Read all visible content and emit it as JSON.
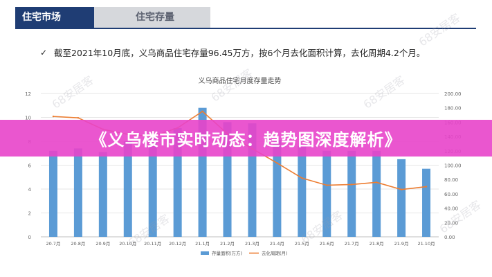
{
  "tabs": {
    "active": "住宅市场",
    "inactive": "住宅存量"
  },
  "bullet_text": "截至2021年10月底，义乌商品住宅存量96.45万方，按6个月去化面积计算，去化周期4.2个月。",
  "banner_text": "《义乌楼市实时动态：趋势图深度解析》",
  "watermark": "68安居客",
  "colors": {
    "bar": "#5b9bd5",
    "line": "#ed7d31",
    "tab_active": "#1f3d74",
    "banner": "#e844ca"
  },
  "chart_data": {
    "type": "bar",
    "title": "义乌商品住宅月度存量走势",
    "categories": [
      "20.7月",
      "20.8月",
      "20.9月",
      "20.10月",
      "20.11月",
      "20.12月",
      "21.1月",
      "21.2月",
      "21.3月",
      "21.4月",
      "21.5月",
      "21.6月",
      "21.7月",
      "21.8月",
      "21.9月",
      "21.10月"
    ],
    "left_axis": {
      "ylim": [
        0,
        12
      ],
      "ticks": [
        "0",
        "2",
        "4",
        "6",
        "8",
        "10",
        "12"
      ]
    },
    "right_axis": {
      "ylim": [
        0,
        200
      ],
      "ticks": [
        "0.00",
        "20.00",
        "40.00",
        "60.00",
        "80.00",
        "100.00",
        "120.00",
        "140.00",
        "160.00",
        "180.00",
        "200.00"
      ]
    },
    "series": [
      {
        "name": "存量面积(万方)",
        "type": "bar",
        "axis": "left",
        "values": [
          7.2,
          7.4,
          7.1,
          8.0,
          8.4,
          9.1,
          10.8,
          9.6,
          9.5,
          8.1,
          7.6,
          7.2,
          7.2,
          7.2,
          6.5,
          5.7
        ]
      },
      {
        "name": "去化周期(月)",
        "type": "line",
        "axis": "right",
        "values": [
          168,
          166,
          150,
          143,
          140,
          152,
          175,
          144,
          123,
          103,
          82,
          72,
          73,
          76,
          66,
          70
        ]
      }
    ]
  }
}
